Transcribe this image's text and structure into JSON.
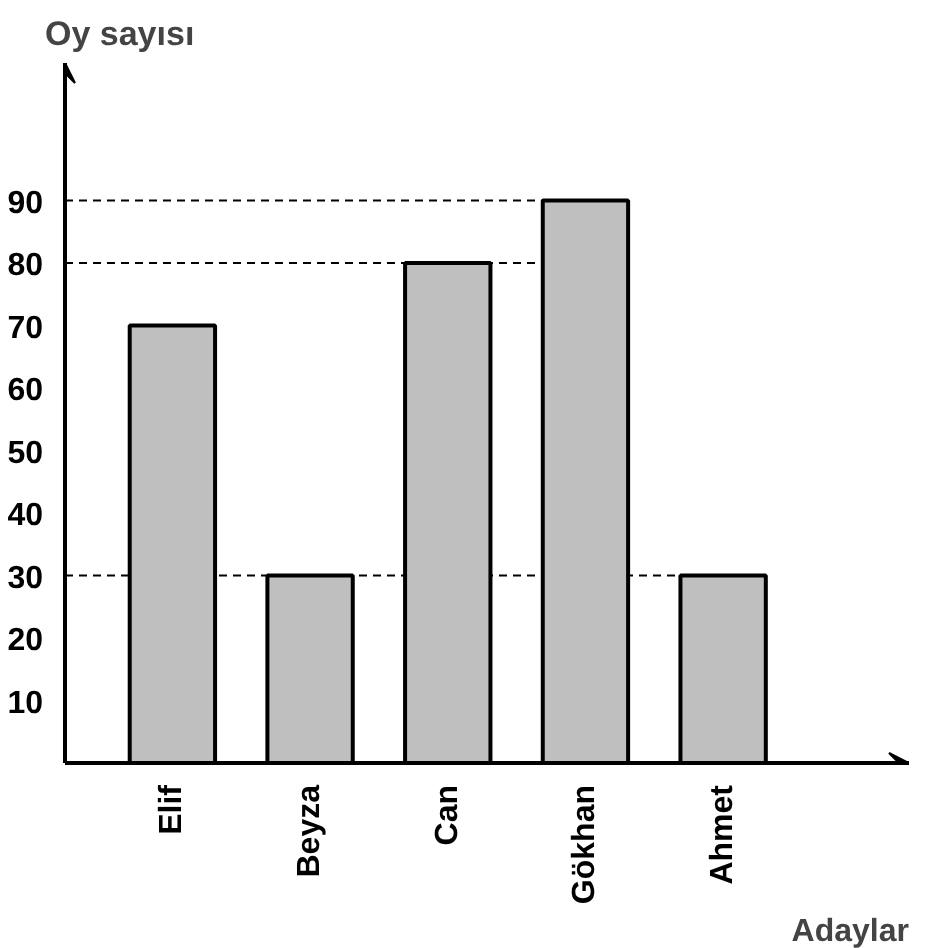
{
  "chart_data": {
    "type": "bar",
    "ylabel": "Oy sayısı",
    "xlabel": "Adaylar",
    "categories": [
      "Elif",
      "Beyza",
      "Can",
      "Gökhan",
      "Ahmet"
    ],
    "values": [
      70,
      30,
      80,
      90,
      30
    ],
    "color": "#bfbfbf",
    "ylim": [
      0,
      112
    ],
    "yticks": [
      10,
      20,
      30,
      40,
      50,
      60,
      70,
      80,
      90
    ],
    "grid": false,
    "ref_lines": [
      {
        "axis": "y",
        "value": 90,
        "line_style": "dashed"
      },
      {
        "axis": "y",
        "value": 80,
        "line_style": "dashed"
      },
      {
        "axis": "y",
        "value": 30,
        "line_style": "dashed"
      }
    ]
  }
}
